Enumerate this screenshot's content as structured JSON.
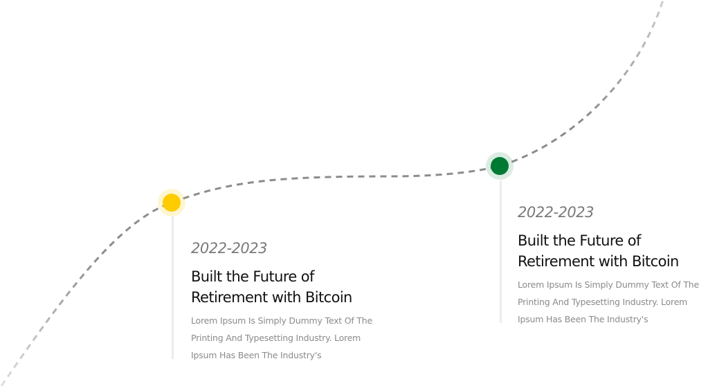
{
  "timeline": {
    "milestones": [
      {
        "year": "2022-2023",
        "title": "Built the Future of Retirement with Bitcoin",
        "description": "Lorem Ipsum Is Simply Dummy Text Of The Printing And Typesetting Industry. Lorem Ipsum Has Been The Industry's",
        "color": "#ffcc00"
      },
      {
        "year": "2022-2023",
        "title": "Built the Future of Retirement with Bitcoin",
        "description": "Lorem Ipsum Is Simply Dummy Text Of The Printing And Typesetting Industry. Lorem Ipsum Has Been The Industry's",
        "color": "#007a33"
      }
    ],
    "path_colors": {
      "faded": "#d9d9d9",
      "main": "#8a8a8a"
    }
  }
}
